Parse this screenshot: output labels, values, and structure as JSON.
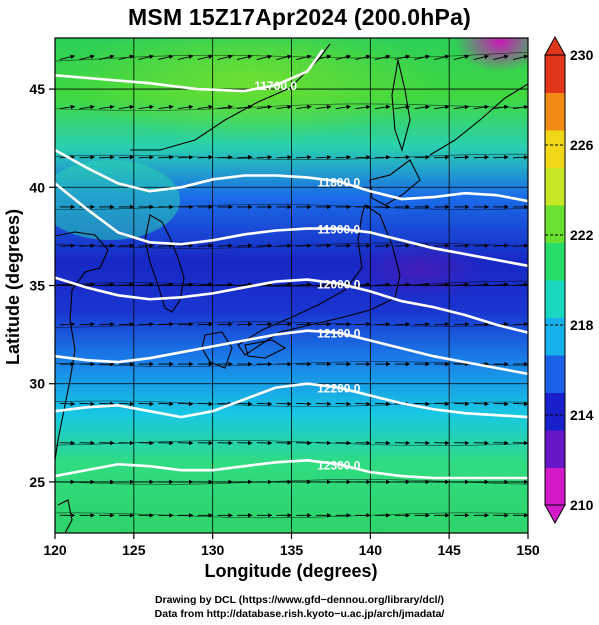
{
  "title": "MSM 15Z17Apr2024 (200.0hPa)",
  "chart_data": {
    "type": "heatmap",
    "title": "MSM 15Z17Apr2024 (200.0hPa)",
    "xlabel": "Longitude (degrees)",
    "ylabel": "Latitude  (degrees)",
    "xlim": [
      120,
      150
    ],
    "ylim": [
      22.4,
      47.6
    ],
    "x_ticks": [
      "120",
      "125",
      "130",
      "135",
      "140",
      "145",
      "150"
    ],
    "y_ticks": [
      "25",
      "30",
      "35",
      "40",
      "45"
    ],
    "grid": true,
    "colorbar": {
      "min": 210,
      "max": 230,
      "ticks": [
        "230",
        "226",
        "222",
        "218",
        "214",
        "210"
      ],
      "colors": [
        "#d41ac8",
        "#6618c8",
        "#1820cc",
        "#1a62e6",
        "#16b0ea",
        "#1ad8c0",
        "#28dc6a",
        "#6ae030",
        "#c8e826",
        "#f0d818",
        "#f08a14",
        "#e2361c"
      ]
    },
    "contours": [
      {
        "label": "11700.0",
        "path": [
          [
            120,
            45.7
          ],
          [
            123,
            45.5
          ],
          [
            126,
            45.3
          ],
          [
            129,
            45.0
          ],
          [
            132,
            44.9
          ],
          [
            134,
            45.2
          ],
          [
            136,
            45.9
          ],
          [
            137,
            47.0
          ]
        ]
      },
      {
        "label": "11800.0",
        "path": [
          [
            120,
            41.9
          ],
          [
            122,
            41.0
          ],
          [
            124,
            40.2
          ],
          [
            126,
            39.8
          ],
          [
            128,
            40.0
          ],
          [
            130,
            40.4
          ],
          [
            132,
            40.6
          ],
          [
            134,
            40.6
          ],
          [
            136,
            40.5
          ],
          [
            138,
            40.3
          ],
          [
            140,
            39.8
          ],
          [
            142,
            39.4
          ],
          [
            144,
            39.5
          ],
          [
            146,
            39.7
          ],
          [
            148,
            39.6
          ],
          [
            150,
            39.3
          ]
        ]
      },
      {
        "label": "11900.0",
        "path": [
          [
            120,
            40.2
          ],
          [
            122,
            38.9
          ],
          [
            124,
            37.7
          ],
          [
            126,
            37.2
          ],
          [
            128,
            37.1
          ],
          [
            130,
            37.3
          ],
          [
            132,
            37.6
          ],
          [
            134,
            37.8
          ],
          [
            136,
            37.9
          ],
          [
            138,
            37.9
          ],
          [
            140,
            37.7
          ],
          [
            142,
            37.3
          ],
          [
            144,
            36.9
          ],
          [
            146,
            36.6
          ],
          [
            148,
            36.3
          ],
          [
            150,
            36.0
          ]
        ]
      },
      {
        "label": "12000.0",
        "path": [
          [
            120,
            35.4
          ],
          [
            122,
            34.9
          ],
          [
            124,
            34.5
          ],
          [
            126,
            34.3
          ],
          [
            128,
            34.4
          ],
          [
            130,
            34.6
          ],
          [
            132,
            34.9
          ],
          [
            134,
            35.2
          ],
          [
            136,
            35.3
          ],
          [
            138,
            35.1
          ],
          [
            140,
            34.7
          ],
          [
            142,
            34.2
          ],
          [
            144,
            33.9
          ],
          [
            146,
            33.5
          ],
          [
            148,
            33.0
          ],
          [
            150,
            32.6
          ]
        ]
      },
      {
        "label": "12100.0",
        "path": [
          [
            120,
            31.4
          ],
          [
            122,
            31.2
          ],
          [
            124,
            31.1
          ],
          [
            126,
            31.3
          ],
          [
            128,
            31.6
          ],
          [
            130,
            31.9
          ],
          [
            132,
            32.2
          ],
          [
            134,
            32.5
          ],
          [
            136,
            32.7
          ],
          [
            138,
            32.6
          ],
          [
            140,
            32.2
          ],
          [
            142,
            31.8
          ],
          [
            144,
            31.4
          ],
          [
            146,
            31.1
          ],
          [
            148,
            30.8
          ],
          [
            150,
            30.5
          ]
        ]
      },
      {
        "label": "12200.0",
        "path": [
          [
            120,
            28.6
          ],
          [
            122,
            28.8
          ],
          [
            124,
            28.9
          ],
          [
            126,
            28.6
          ],
          [
            128,
            28.3
          ],
          [
            130,
            28.6
          ],
          [
            132,
            29.2
          ],
          [
            134,
            29.8
          ],
          [
            136,
            30.0
          ],
          [
            138,
            29.8
          ],
          [
            140,
            29.4
          ],
          [
            142,
            29.0
          ],
          [
            144,
            28.7
          ],
          [
            146,
            28.5
          ],
          [
            148,
            28.4
          ],
          [
            150,
            28.3
          ]
        ]
      },
      {
        "label": "12300.0",
        "path": [
          [
            120,
            25.3
          ],
          [
            122,
            25.6
          ],
          [
            124,
            25.9
          ],
          [
            126,
            25.8
          ],
          [
            128,
            25.6
          ],
          [
            130,
            25.6
          ],
          [
            132,
            25.8
          ],
          [
            134,
            26.0
          ],
          [
            136,
            26.1
          ],
          [
            138,
            25.9
          ],
          [
            140,
            25.5
          ],
          [
            142,
            25.3
          ],
          [
            144,
            25.2
          ],
          [
            146,
            25.2
          ],
          [
            148,
            25.2
          ],
          [
            150,
            25.2
          ]
        ]
      }
    ],
    "wind": [
      {
        "lat": 46.5,
        "u": 1.0,
        "v": -0.25
      },
      {
        "lat": 44.0,
        "u": 1.0,
        "v": -0.15
      },
      {
        "lat": 41.5,
        "u": 1.0,
        "v": -0.05
      },
      {
        "lat": 39.0,
        "u": 1.0,
        "v": 0.0
      },
      {
        "lat": 37.0,
        "u": 1.0,
        "v": -0.05
      },
      {
        "lat": 35.0,
        "u": 1.0,
        "v": -0.08
      },
      {
        "lat": 33.0,
        "u": 1.0,
        "v": -0.05
      },
      {
        "lat": 31.0,
        "u": 1.0,
        "v": 0.0
      },
      {
        "lat": 29.0,
        "u": 1.0,
        "v": 0.05
      },
      {
        "lat": 27.0,
        "u": 1.0,
        "v": 0.03
      },
      {
        "lat": 25.0,
        "u": 1.0,
        "v": 0.0
      },
      {
        "lat": 23.3,
        "u": 1.0,
        "v": 0.0
      }
    ]
  },
  "credits": {
    "line1": "Drawing by DCL (https://www.gfd−dennou.org/library/dcl/)",
    "line2": "Data from http://database.rish.kyoto−u.ac.jp/arch/jmadata/"
  }
}
